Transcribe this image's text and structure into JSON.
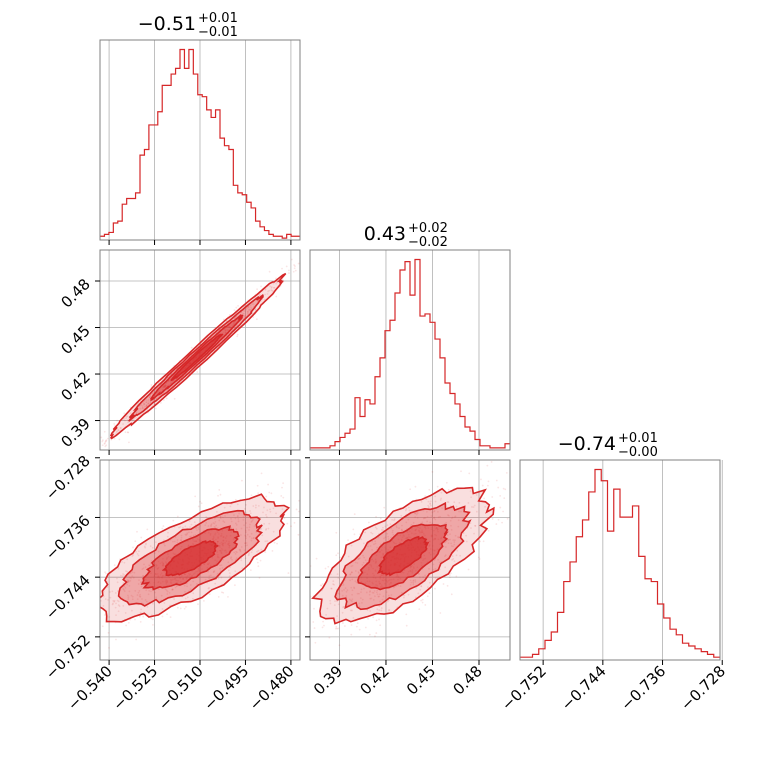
{
  "chart_data": {
    "type": "corner",
    "color": "#d62728",
    "parameters": [
      {
        "value": "−0.51",
        "upper": "+0.01",
        "lower": "−0.01",
        "ticks": [
          -0.54,
          -0.525,
          -0.51,
          -0.495,
          -0.48
        ],
        "tick_labels": [
          "−0.540",
          "−0.525",
          "−0.510",
          "−0.495",
          "−0.480"
        ],
        "range": [
          -0.543,
          -0.477
        ]
      },
      {
        "value": "0.43",
        "upper": "+0.02",
        "lower": "−0.02",
        "ticks": [
          0.39,
          0.42,
          0.45,
          0.48
        ],
        "tick_labels": [
          "0.39",
          "0.42",
          "0.45",
          "0.48"
        ],
        "range": [
          0.371,
          0.5
        ]
      },
      {
        "value": "−0.74",
        "upper": "+0.01",
        "lower": "−0.00",
        "ticks": [
          -0.752,
          -0.744,
          -0.736,
          -0.728
        ],
        "tick_labels": [
          "−0.752",
          "−0.744",
          "−0.736",
          "−0.728"
        ],
        "range": [
          -0.7551,
          -0.7283
        ]
      }
    ],
    "histograms": [
      {
        "param": 0,
        "range": [
          -0.543,
          -0.477
        ],
        "counts": [
          2,
          3,
          4,
          9,
          10,
          19,
          22,
          22,
          25,
          45,
          48,
          61,
          61,
          68,
          82,
          82,
          88,
          91,
          101,
          91,
          101,
          88,
          77,
          76,
          69,
          65,
          69,
          54,
          50,
          48,
          29,
          25,
          24,
          20,
          17,
          10,
          7,
          5,
          3,
          2,
          2,
          1,
          3,
          2,
          2
        ]
      },
      {
        "param": 1,
        "range": [
          0.371,
          0.5
        ],
        "counts": [
          1,
          1,
          1,
          1,
          2,
          4,
          6,
          8,
          10,
          25,
          16,
          24,
          22,
          35,
          44,
          57,
          62,
          75,
          86,
          90,
          74,
          91,
          64,
          65,
          61,
          53,
          44,
          32,
          27,
          22,
          16,
          11,
          9,
          5,
          2,
          2,
          1,
          1,
          1,
          3
        ]
      },
      {
        "param": 2,
        "range": [
          -0.7551,
          -0.7283
        ],
        "counts": [
          1,
          1,
          2,
          4,
          7,
          10,
          17,
          28,
          35,
          44,
          50,
          60,
          68,
          64,
          46,
          61,
          51,
          51,
          55,
          37,
          29,
          28,
          20,
          15,
          11,
          9,
          6,
          5,
          4,
          3,
          2,
          1
        ]
      }
    ],
    "contours": [
      {
        "x": 0,
        "y": 1,
        "center": [
          -0.511,
          0.431
        ],
        "slope": 1.78,
        "spread": 0.0145,
        "width": 0.0036
      },
      {
        "x": 0,
        "y": 2,
        "center": [
          -0.513,
          -0.7415
        ],
        "slope": 0.19,
        "spread": 0.0155,
        "width": 0.0028
      },
      {
        "x": 1,
        "y": 2,
        "center": [
          0.431,
          -0.7412
        ],
        "slope": 0.11,
        "spread": 0.0275,
        "width": 0.0033
      }
    ],
    "grid": true
  }
}
